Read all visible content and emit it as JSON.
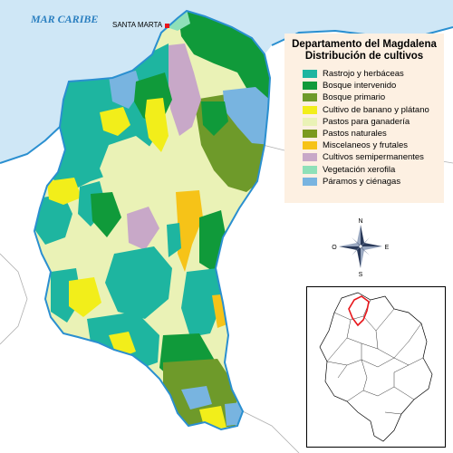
{
  "sea_label": "MAR CARIBE",
  "city_label": "SANTA MARTA",
  "legend": {
    "title_line1": "Departamento del Magdalena",
    "title_line2": "Distribución de cultivos",
    "items": [
      {
        "label": "Rastrojo y herbáceas",
        "color": "#1eb5a0"
      },
      {
        "label": "Bosque intervenido",
        "color": "#109a3a"
      },
      {
        "label": "Bosque primario",
        "color": "#6e9a2a"
      },
      {
        "label": "Cultivo de banano y plátano",
        "color": "#f2ee1a"
      },
      {
        "label": "Pastos para ganadería",
        "color": "#eaf2b6"
      },
      {
        "label": "Pastos naturales",
        "color": "#7a9a1e"
      },
      {
        "label": "Miscelaneos y frutales",
        "color": "#f6c318"
      },
      {
        "label": "Cultivos semipermanentes",
        "color": "#c8a8c8"
      },
      {
        "label": "Vegetación xerofila",
        "color": "#8ee0b8"
      },
      {
        "label": "Páramos y ciénagas",
        "color": "#78b4e0"
      }
    ]
  },
  "compass": {
    "n": "N",
    "s": "S",
    "e": "E",
    "o": "O"
  },
  "colors": {
    "sea": "#cfe7f6",
    "coast": "#2a8fd0",
    "land_outline": "#8c8c8c",
    "highlight": "#e8161b"
  }
}
